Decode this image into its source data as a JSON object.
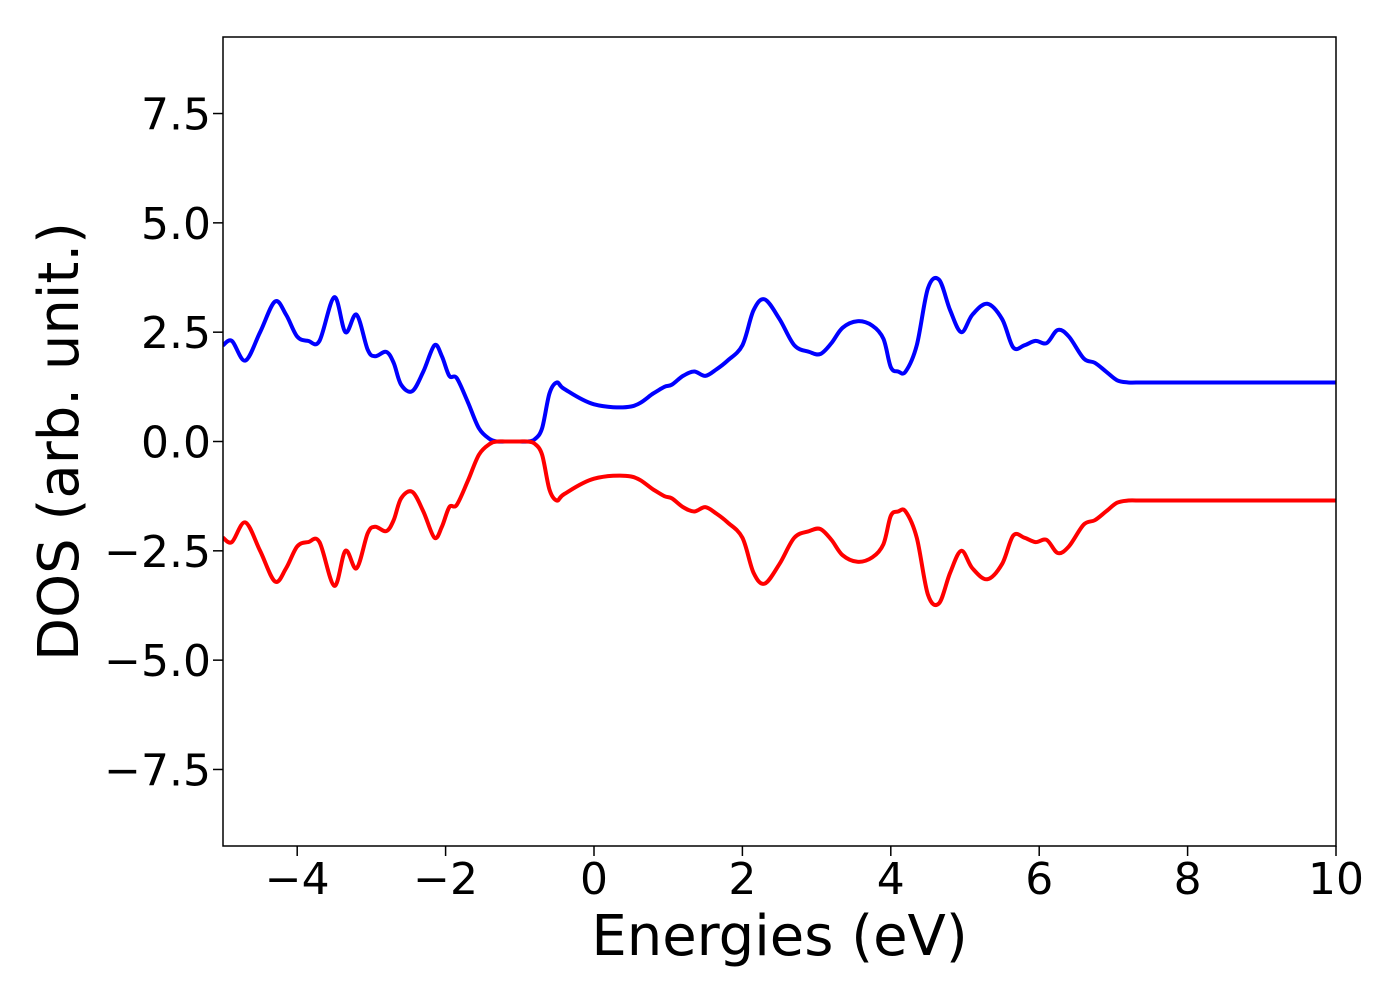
{
  "chart_data": {
    "type": "line",
    "title": "",
    "xlabel": "Energies (eV)",
    "ylabel": "DOS (arb. unit.)",
    "xlim": [
      -5,
      10
    ],
    "ylim": [
      -9.25,
      9.25
    ],
    "xticks": [
      -4,
      -2,
      0,
      2,
      4,
      6,
      8,
      10
    ],
    "xtick_labels": [
      "−4",
      "−2",
      "0",
      "2",
      "4",
      "6",
      "8",
      "10"
    ],
    "yticks": [
      -7.5,
      -5.0,
      -2.5,
      0.0,
      2.5,
      5.0,
      7.5
    ],
    "ytick_labels": [
      "−7.5",
      "−5.0",
      "−2.5",
      "0.0",
      "2.5",
      "5.0",
      "7.5"
    ],
    "grid": false,
    "legend": null,
    "series": [
      {
        "color": "#0000ff",
        "x": [
          -5.0,
          -4.88,
          -4.7,
          -4.5,
          -4.3,
          -4.15,
          -4.0,
          -3.85,
          -3.7,
          -3.5,
          -3.35,
          -3.2,
          -3.05,
          -2.95,
          -2.8,
          -2.7,
          -2.6,
          -2.45,
          -2.3,
          -2.15,
          -2.05,
          -1.95,
          -1.85,
          -1.7,
          -1.55,
          -1.4,
          -1.3,
          -1.2,
          -1.1,
          -1.0,
          -0.9,
          -0.8,
          -0.7,
          -0.6,
          -0.5,
          -0.4,
          0.0,
          0.5,
          0.8,
          0.95,
          1.05,
          1.2,
          1.35,
          1.5,
          1.65,
          1.8,
          2.0,
          2.15,
          2.3,
          2.5,
          2.7,
          2.9,
          3.05,
          3.2,
          3.35,
          3.55,
          3.75,
          3.9,
          4.0,
          4.1,
          4.2,
          4.35,
          4.5,
          4.65,
          4.8,
          4.95,
          5.1,
          5.3,
          5.5,
          5.65,
          5.8,
          5.95,
          6.1,
          6.25,
          6.4,
          6.6,
          6.75,
          6.9,
          7.05,
          7.2,
          7.35,
          7.45,
          7.55,
          7.7,
          7.85,
          7.95,
          8.1,
          8.25,
          8.4,
          8.6,
          8.75,
          8.9,
          9.05,
          9.15,
          9.25,
          9.35,
          9.45,
          9.6,
          9.75,
          9.9,
          10.0
        ],
        "y": [
          2.2,
          2.3,
          1.85,
          2.5,
          3.2,
          2.9,
          2.4,
          2.3,
          2.3,
          3.3,
          2.5,
          2.9,
          2.1,
          1.95,
          2.05,
          1.8,
          1.3,
          1.15,
          1.6,
          2.2,
          1.95,
          1.5,
          1.45,
          0.9,
          0.3,
          0.05,
          0.0,
          0.0,
          0.0,
          0.0,
          0.0,
          0.05,
          0.3,
          1.1,
          1.35,
          1.2,
          0.85,
          0.8,
          1.1,
          1.25,
          1.3,
          1.5,
          1.6,
          1.5,
          1.65,
          1.85,
          2.2,
          3.0,
          3.25,
          2.8,
          2.2,
          2.05,
          2.0,
          2.25,
          2.6,
          2.75,
          2.65,
          2.35,
          1.7,
          1.6,
          1.6,
          2.2,
          3.5,
          3.7,
          3.0,
          2.5,
          2.9,
          3.15,
          2.8,
          2.15,
          2.2,
          2.3,
          2.25,
          2.55,
          2.4,
          1.9,
          1.8,
          1.6,
          1.4,
          1.35,
          1.35,
          1.35,
          1.35,
          1.35,
          1.35,
          1.35,
          1.35,
          1.35,
          1.35,
          1.35,
          1.35,
          1.35,
          1.35,
          1.35,
          1.35,
          1.35,
          1.35,
          1.35,
          1.35,
          1.35,
          1.35
        ]
      },
      {
        "color": "#ff0000",
        "x": [
          -5.0,
          -4.88,
          -4.7,
          -4.5,
          -4.3,
          -4.15,
          -4.0,
          -3.85,
          -3.7,
          -3.5,
          -3.35,
          -3.2,
          -3.05,
          -2.95,
          -2.8,
          -2.7,
          -2.6,
          -2.45,
          -2.3,
          -2.15,
          -2.05,
          -1.95,
          -1.85,
          -1.7,
          -1.55,
          -1.4,
          -1.3,
          -1.2,
          -1.1,
          -1.0,
          -0.9,
          -0.8,
          -0.7,
          -0.6,
          -0.5,
          -0.4,
          0.0,
          0.5,
          0.8,
          0.95,
          1.05,
          1.2,
          1.35,
          1.5,
          1.65,
          1.8,
          2.0,
          2.15,
          2.3,
          2.5,
          2.7,
          2.9,
          3.05,
          3.2,
          3.35,
          3.55,
          3.75,
          3.9,
          4.0,
          4.1,
          4.2,
          4.35,
          4.5,
          4.65,
          4.8,
          4.95,
          5.1,
          5.3,
          5.5,
          5.65,
          5.8,
          5.95,
          6.1,
          6.25,
          6.4,
          6.6,
          6.75,
          6.9,
          7.05,
          7.2,
          7.35,
          7.45,
          7.55,
          7.7,
          7.85,
          7.95,
          8.1,
          8.25,
          8.4,
          8.6,
          8.75,
          8.9,
          9.05,
          9.15,
          9.25,
          9.35,
          9.45,
          9.6,
          9.75,
          9.9,
          10.0
        ],
        "y": [
          -2.2,
          -2.3,
          -1.85,
          -2.5,
          -3.2,
          -2.9,
          -2.4,
          -2.3,
          -2.3,
          -3.3,
          -2.5,
          -2.9,
          -2.1,
          -1.95,
          -2.05,
          -1.8,
          -1.3,
          -1.15,
          -1.6,
          -2.2,
          -1.95,
          -1.5,
          -1.45,
          -0.9,
          -0.3,
          -0.05,
          0.0,
          0.0,
          0.0,
          0.0,
          0.0,
          -0.05,
          -0.3,
          -1.1,
          -1.35,
          -1.2,
          -0.85,
          -0.8,
          -1.1,
          -1.25,
          -1.3,
          -1.5,
          -1.6,
          -1.5,
          -1.65,
          -1.85,
          -2.2,
          -3.0,
          -3.25,
          -2.8,
          -2.2,
          -2.05,
          -2.0,
          -2.25,
          -2.6,
          -2.75,
          -2.65,
          -2.35,
          -1.7,
          -1.6,
          -1.6,
          -2.2,
          -3.5,
          -3.7,
          -3.0,
          -2.5,
          -2.9,
          -3.15,
          -2.8,
          -2.15,
          -2.2,
          -2.3,
          -2.25,
          -2.55,
          -2.4,
          -1.9,
          -1.8,
          -1.6,
          -1.4,
          -1.35,
          -1.35,
          -1.35,
          -1.35,
          -1.35,
          -1.35,
          -1.35,
          -1.35,
          -1.35,
          -1.35,
          -1.35,
          -1.35,
          -1.35,
          -1.35,
          -1.35,
          -1.35,
          -1.35,
          -1.35,
          -1.35,
          -1.35,
          -1.35,
          -1.35
        ]
      }
    ]
  }
}
